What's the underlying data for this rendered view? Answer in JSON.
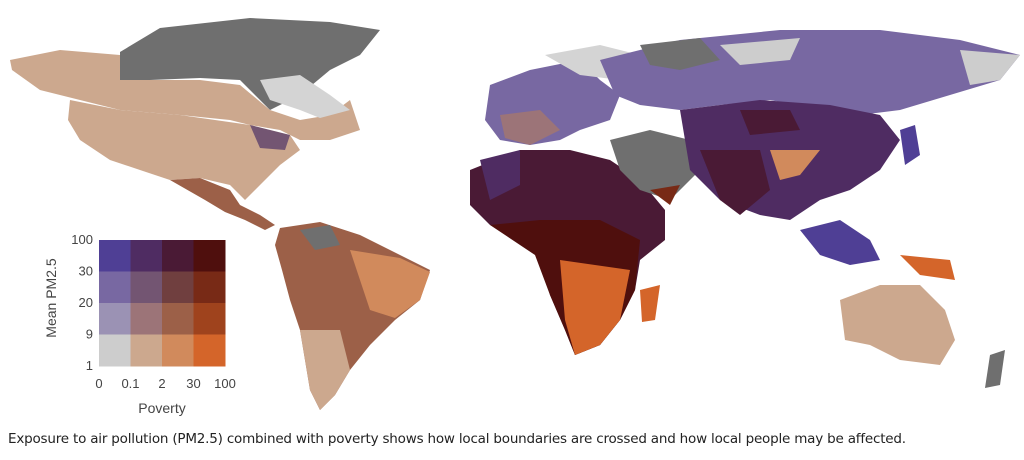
{
  "caption": "Exposure to air pollution (PM2.5) combined with poverty shows how local boundaries are crossed and how local people may be affected.",
  "legend": {
    "y_label": "Mean PM2.5",
    "x_label": "Poverty",
    "y_ticks": [
      "100",
      "30",
      "20",
      "9",
      "1"
    ],
    "x_ticks": [
      "0",
      "0.1",
      "2",
      "30",
      "100"
    ],
    "colors": [
      [
        "#4f3f95",
        "#4f2c62",
        "#4a1a35",
        "#4f0f0d"
      ],
      [
        "#7868a2",
        "#735572",
        "#703f3f",
        "#782a16"
      ],
      [
        "#9b92b4",
        "#9c7478",
        "#9c6048",
        "#9f431d"
      ],
      [
        "#cdcdcd",
        "#cca88e",
        "#d18a5c",
        "#d4652a"
      ]
    ],
    "no_data_color": "#6f6f6f"
  }
}
